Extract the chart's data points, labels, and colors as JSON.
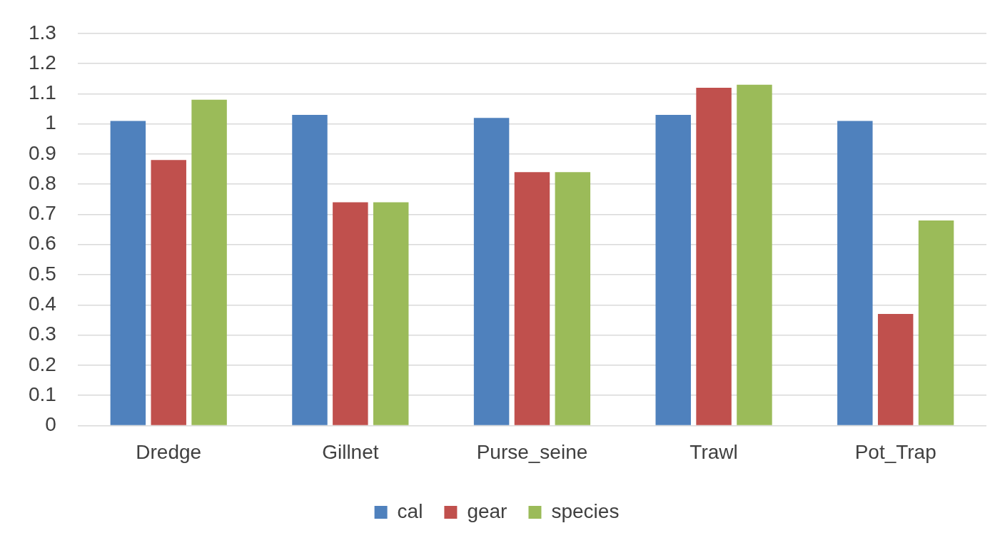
{
  "chart_data": {
    "type": "bar",
    "categories": [
      "Dredge",
      "Gillnet",
      "Purse_seine",
      "Trawl",
      "Pot_Trap"
    ],
    "series": [
      {
        "name": "cal",
        "color": "#4f81bd",
        "values": [
          1.01,
          1.03,
          1.02,
          1.03,
          1.01
        ]
      },
      {
        "name": "gear",
        "color": "#c0504d",
        "values": [
          0.88,
          0.74,
          0.84,
          1.12,
          0.37
        ]
      },
      {
        "name": "species",
        "color": "#9bbb59",
        "values": [
          1.08,
          0.74,
          0.84,
          1.13,
          0.68
        ]
      }
    ],
    "ylim": [
      0,
      1.3
    ],
    "yticks": [
      0,
      0.1,
      0.2,
      0.3,
      0.4,
      0.5,
      0.6,
      0.7,
      0.8,
      0.9,
      1,
      1.1,
      1.2,
      1.3
    ],
    "grid": "y",
    "legend": "bottom"
  }
}
